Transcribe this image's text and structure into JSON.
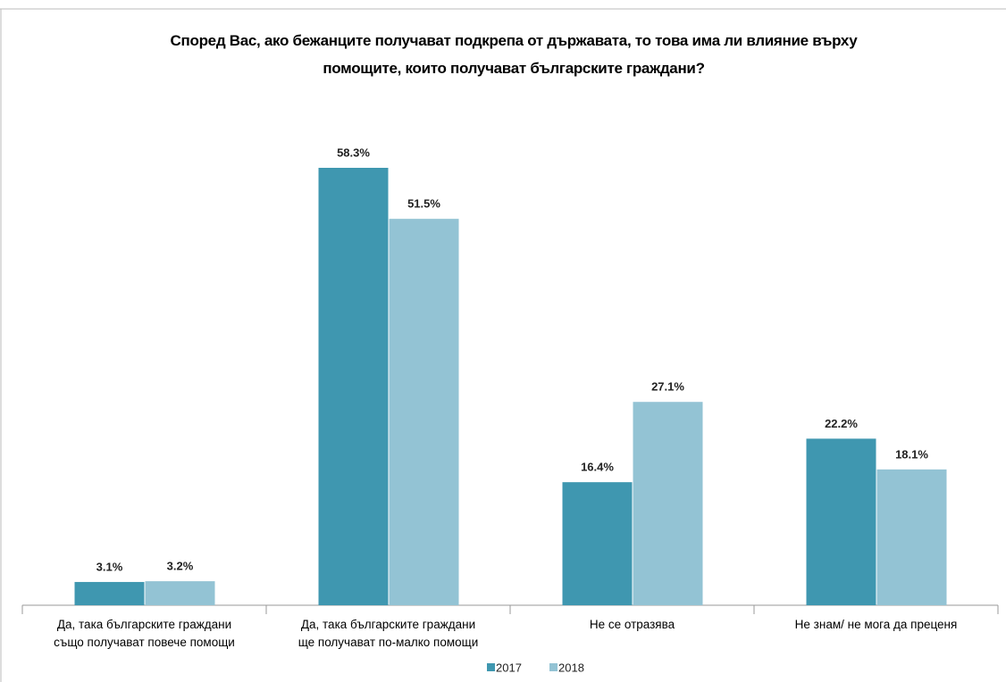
{
  "chart_data": {
    "type": "bar",
    "title": "Според Вас, ако бежанците получават подкрепа от държавата, то това има ли влияние върху\nпомощите, които получават българските граждани?",
    "categories": [
      "Да, така българските граждани\nсъщо получават повече помощи",
      "Да, така българските граждани\nще получават по-малко помощи",
      "Не се отразява",
      "Не знам/ не мога да преценя"
    ],
    "series": [
      {
        "name": "2017",
        "color": "#3f97b0",
        "values": [
          3.1,
          58.3,
          16.4,
          22.2
        ],
        "value_labels": [
          "3.1%",
          "58.3%",
          "16.4%",
          "22.2%"
        ]
      },
      {
        "name": "2018",
        "color": "#93c3d4",
        "values": [
          3.2,
          51.5,
          27.1,
          18.1
        ],
        "value_labels": [
          "3.2%",
          "51.5%",
          "27.1%",
          "18.1%"
        ]
      }
    ],
    "legend": "bottom"
  }
}
